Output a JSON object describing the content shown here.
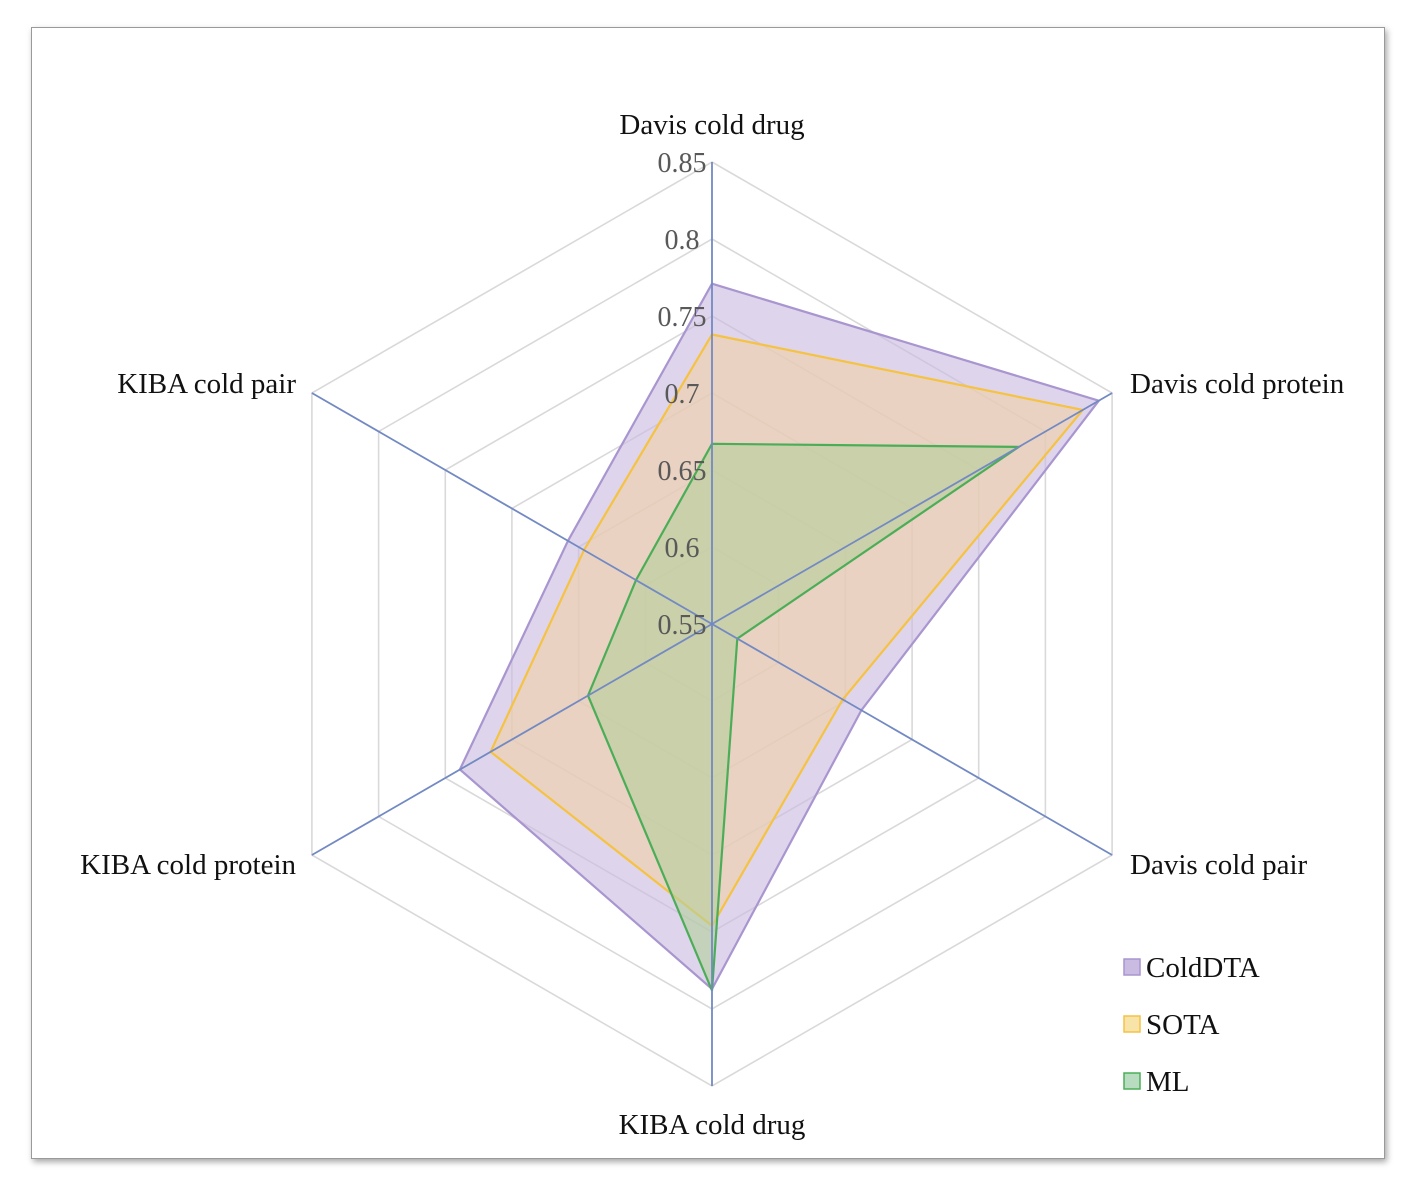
{
  "chart_data": {
    "type": "radar",
    "title": "",
    "axes": [
      "Davis cold drug",
      "Davis cold protein",
      "Davis cold pair",
      "KIBA cold drug",
      "KIBA cold protein",
      "KIBA cold pair"
    ],
    "ticks": [
      "0.55",
      "0.6",
      "0.65",
      "0.7",
      "0.75",
      "0.8",
      "0.85"
    ],
    "range": [
      0.55,
      0.85
    ],
    "grid": true,
    "legend_position": "bottom-right",
    "series": [
      {
        "name": "ColdDTA",
        "values": [
          0.771,
          0.84,
          0.662,
          0.787,
          0.739,
          0.658
        ],
        "fill": "#c9bbe1",
        "stroke": "#a995cf"
      },
      {
        "name": "SOTA",
        "values": [
          0.738,
          0.828,
          0.648,
          0.746,
          0.716,
          0.646
        ],
        "fill": "#f1d1a6",
        "stroke": "#f5c242"
      },
      {
        "name": "ML",
        "values": [
          0.667,
          0.78,
          0.569,
          0.788,
          0.643,
          0.607
        ],
        "fill": "#b4cf9d",
        "stroke": "#4cad58"
      }
    ]
  },
  "colors": {
    "axis_spoke": "#7389c3",
    "grid_ring": "#d9d9d9"
  }
}
